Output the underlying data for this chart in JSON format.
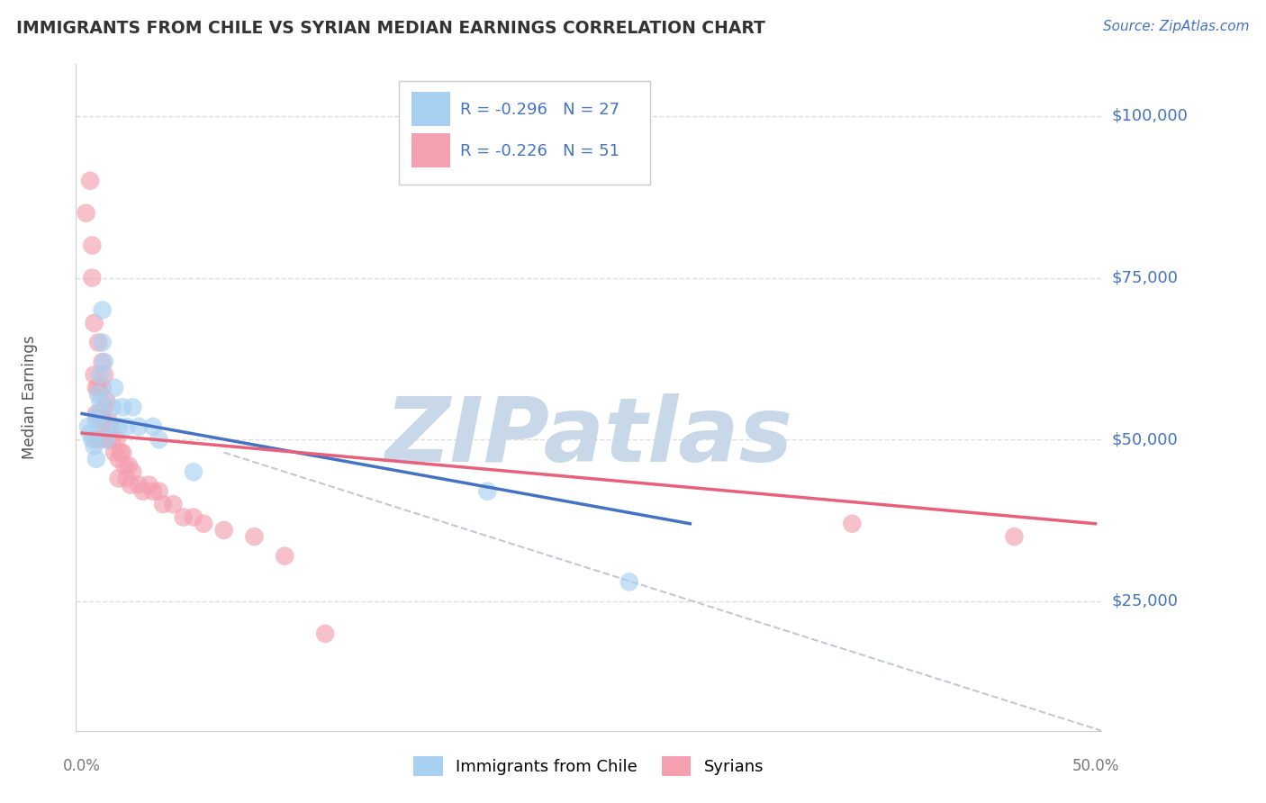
{
  "title": "IMMIGRANTS FROM CHILE VS SYRIAN MEDIAN EARNINGS CORRELATION CHART",
  "source": "Source: ZipAtlas.com",
  "ylabel": "Median Earnings",
  "y_ticks": [
    25000,
    50000,
    75000,
    100000
  ],
  "y_tick_labels": [
    "$25,000",
    "$50,000",
    "$75,000",
    "$100,000"
  ],
  "xlim": [
    -0.003,
    0.503
  ],
  "ylim": [
    5000,
    108000
  ],
  "chile_color_fill": "#a8d0f0",
  "syrian_color_fill": "#f4a0b0",
  "chile_R": -0.296,
  "chile_N": 27,
  "syrian_R": -0.226,
  "syrian_N": 51,
  "watermark": "ZIPatlas",
  "background_color": "#ffffff",
  "grid_color": "#dddddd",
  "axis_label_color": "#4472c4",
  "title_color": "#333333",
  "watermark_color": "#c8d8e8",
  "regression_chile_color": "#4472c4",
  "regression_syrian_color": "#e8607a",
  "dashed_line_color": "#b8c4d0",
  "chile_x": [
    0.003,
    0.004,
    0.005,
    0.006,
    0.007,
    0.007,
    0.008,
    0.008,
    0.009,
    0.009,
    0.01,
    0.01,
    0.011,
    0.012,
    0.013,
    0.015,
    0.016,
    0.018,
    0.02,
    0.022,
    0.025,
    0.028,
    0.035,
    0.038,
    0.055,
    0.2,
    0.27
  ],
  "chile_y": [
    52000,
    51000,
    50000,
    49000,
    53000,
    47000,
    57000,
    54000,
    60000,
    56000,
    65000,
    70000,
    62000,
    50000,
    52000,
    55000,
    58000,
    52000,
    55000,
    52000,
    55000,
    52000,
    52000,
    50000,
    45000,
    42000,
    28000
  ],
  "syrian_x": [
    0.002,
    0.004,
    0.005,
    0.005,
    0.006,
    0.006,
    0.007,
    0.007,
    0.007,
    0.008,
    0.008,
    0.009,
    0.009,
    0.01,
    0.01,
    0.01,
    0.011,
    0.011,
    0.012,
    0.012,
    0.013,
    0.013,
    0.014,
    0.015,
    0.016,
    0.017,
    0.018,
    0.018,
    0.019,
    0.02,
    0.021,
    0.022,
    0.023,
    0.024,
    0.025,
    0.028,
    0.03,
    0.033,
    0.035,
    0.038,
    0.04,
    0.045,
    0.05,
    0.055,
    0.06,
    0.07,
    0.085,
    0.1,
    0.12,
    0.38,
    0.46
  ],
  "syrian_y": [
    85000,
    90000,
    80000,
    75000,
    68000,
    60000,
    58000,
    54000,
    50000,
    65000,
    58000,
    54000,
    50000,
    62000,
    58000,
    53000,
    60000,
    55000,
    56000,
    52000,
    53000,
    50000,
    52000,
    50000,
    48000,
    50000,
    47000,
    44000,
    48000,
    48000,
    46000,
    44000,
    46000,
    43000,
    45000,
    43000,
    42000,
    43000,
    42000,
    42000,
    40000,
    40000,
    38000,
    38000,
    37000,
    36000,
    35000,
    32000,
    20000,
    37000,
    35000
  ],
  "chile_line_x0": 0.0,
  "chile_line_y0": 54000,
  "chile_line_x1": 0.3,
  "chile_line_y1": 37000,
  "syrian_line_x0": 0.0,
  "syrian_line_y0": 51000,
  "syrian_line_x1": 0.5,
  "syrian_line_y1": 37000,
  "dash_line_x0": 0.07,
  "dash_line_y0": 48000,
  "dash_line_x1": 0.503,
  "dash_line_y1": 5000
}
